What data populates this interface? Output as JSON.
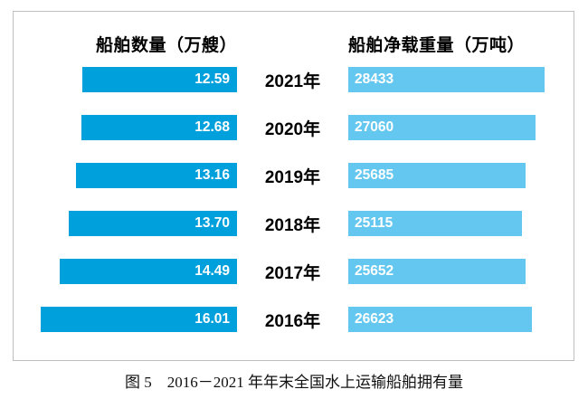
{
  "header": {
    "left": "船舶数量（万艘）",
    "right": "船舶净载重量（万吨）"
  },
  "rows": [
    {
      "year": "2021年",
      "left_label": "12.59",
      "left_value": 12.59,
      "right_label": "28433",
      "right_value": 28433
    },
    {
      "year": "2020年",
      "left_label": "12.68",
      "left_value": 12.68,
      "right_label": "27060",
      "right_value": 27060
    },
    {
      "year": "2019年",
      "left_label": "13.16",
      "left_value": 13.16,
      "right_label": "25685",
      "right_value": 25685
    },
    {
      "year": "2018年",
      "left_label": "13.70",
      "left_value": 13.7,
      "right_label": "25115",
      "right_value": 25115
    },
    {
      "year": "2017年",
      "left_label": "14.49",
      "left_value": 14.49,
      "right_label": "25652",
      "right_value": 25652
    },
    {
      "year": "2016年",
      "left_label": "16.01",
      "left_value": 16.01,
      "right_label": "26623",
      "right_value": 26623
    }
  ],
  "caption": "图 5　2016－2021 年年末全国水上运输船舶拥有量",
  "colors": {
    "left_bar": "#00a0dc",
    "right_bar": "#63c7f0",
    "frame_border": "#bfbfbf",
    "bar_value_text": "#ffffff",
    "label_text": "#000000"
  },
  "chart_data": {
    "type": "bar",
    "subtype": "bidirectional-horizontal (tornado)",
    "title": "图 5　2016－2021 年年末全国水上运输船舶拥有量",
    "categories": [
      "2021年",
      "2020年",
      "2019年",
      "2018年",
      "2017年",
      "2016年"
    ],
    "series": [
      {
        "name": "船舶数量（万艘）",
        "direction": "left",
        "color": "#00a0dc",
        "values": [
          12.59,
          12.68,
          13.16,
          13.7,
          14.49,
          16.01
        ],
        "value_labels": [
          "12.59",
          "12.68",
          "13.16",
          "13.70",
          "14.49",
          "16.01"
        ]
      },
      {
        "name": "船舶净载重量（万吨）",
        "direction": "right",
        "color": "#63c7f0",
        "values": [
          28433,
          27060,
          25685,
          25115,
          25652,
          26623
        ],
        "value_labels": [
          "28433",
          "27060",
          "25685",
          "25115",
          "25652",
          "26623"
        ]
      }
    ],
    "axis": {
      "left_max": 16.01,
      "right_max": 28433,
      "min": 0,
      "gridlines": false,
      "legend": "column headers above bars"
    },
    "data_labels": "inside bar ends, white bold"
  }
}
